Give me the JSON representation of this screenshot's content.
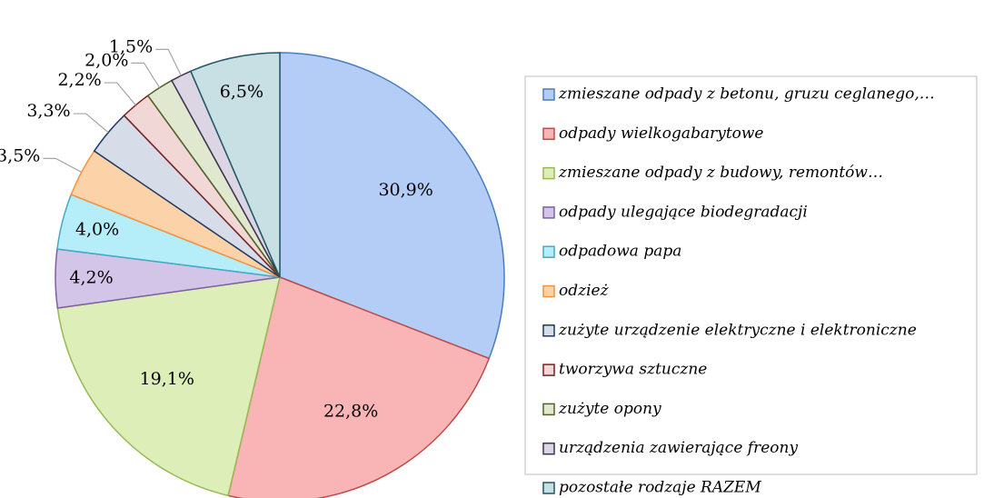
{
  "chart_data": {
    "type": "pie",
    "categories": [
      "zmieszane odpady z betonu, gruzu ceglanego,…",
      "odpady wielkogabarytowe",
      "zmieszane odpady z budowy, remontów…",
      "odpady ulegające biodegradacji",
      "odpadowa papa",
      "odzież",
      "zużyte urządzenie elektryczne i elektroniczne",
      "tworzywa sztuczne",
      "zużyte opony",
      "urządzenia zawierające freony",
      "pozostałe rodzaje RAZEM"
    ],
    "values": [
      30.9,
      22.8,
      19.1,
      4.2,
      4.0,
      3.5,
      3.3,
      2.2,
      2.0,
      1.5,
      6.5
    ],
    "value_labels": [
      "30,9%",
      "22,8%",
      "19,1%",
      "4,2%",
      "4,0%",
      "3,5%",
      "3,3%",
      "2,2%",
      "2,0%",
      "1,5%",
      "6,5%"
    ],
    "colors": [
      "#b3cdf7",
      "#f9b5b5",
      "#ddeeb8",
      "#d3c5e8",
      "#b5eef9",
      "#fcd3a9",
      "#d6dde9",
      "#f2d7d7",
      "#e0e8d0",
      "#dcd6e4",
      "#c8dfe4"
    ],
    "edge_colors": [
      "#4a7ebb",
      "#be4b48",
      "#98b954",
      "#7d60a0",
      "#46aac5",
      "#f69240",
      "#1f3864",
      "#7b1f1f",
      "#4f6228",
      "#3f3151",
      "#215967"
    ],
    "legend": "right"
  }
}
